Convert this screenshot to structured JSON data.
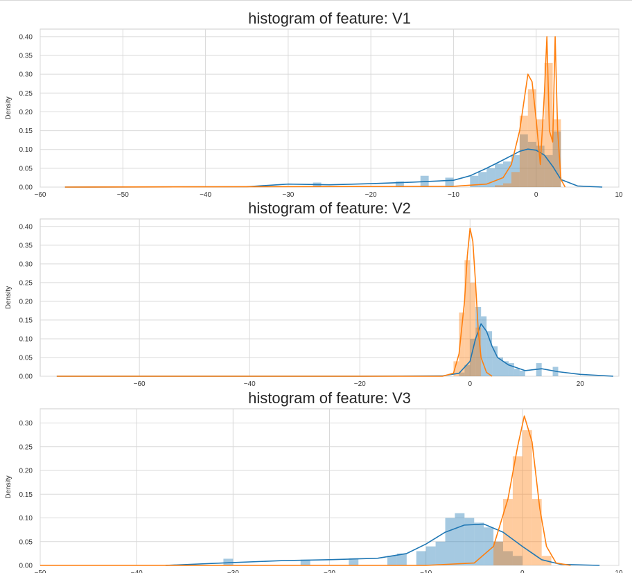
{
  "chart_data": [
    {
      "type": "histogram",
      "title": "histogram of feature: V1",
      "ylabel": "Density",
      "xlim": [
        -60,
        10
      ],
      "ylim": [
        0,
        0.42
      ],
      "xticks": [
        -60,
        -50,
        -40,
        -30,
        -20,
        -10,
        0,
        10
      ],
      "xtick_labels": [
        "−60",
        "−50",
        "−40",
        "−30",
        "−20",
        "−10",
        "0",
        "10"
      ],
      "yticks": [
        0,
        0.05,
        0.1,
        0.15,
        0.2,
        0.25,
        0.3,
        0.35,
        0.4
      ],
      "ytick_labels": [
        "0.00",
        "0.05",
        "0.10",
        "0.15",
        "0.20",
        "0.25",
        "0.30",
        "0.35",
        "0.40"
      ],
      "grid": true,
      "series": [
        {
          "color": "#1f77b4",
          "bars": [
            {
              "x": -26.5,
              "y": 0.012
            },
            {
              "x": -16.5,
              "y": 0.015
            },
            {
              "x": -13.5,
              "y": 0.03
            },
            {
              "x": -10.5,
              "y": 0.025
            },
            {
              "x": -7.5,
              "y": 0.03
            },
            {
              "x": -6.5,
              "y": 0.04
            },
            {
              "x": -5.5,
              "y": 0.05
            },
            {
              "x": -4.5,
              "y": 0.062
            },
            {
              "x": -3.5,
              "y": 0.068
            },
            {
              "x": -2.5,
              "y": 0.085
            },
            {
              "x": -1.5,
              "y": 0.14
            },
            {
              "x": -0.5,
              "y": 0.12
            },
            {
              "x": 0.5,
              "y": 0.11
            },
            {
              "x": 1.5,
              "y": 0.085
            },
            {
              "x": 2.5,
              "y": 0.148
            }
          ],
          "kde": [
            [
              -57,
              0
            ],
            [
              -35,
              0.001
            ],
            [
              -30,
              0.008
            ],
            [
              -25,
              0.006
            ],
            [
              -20,
              0.009
            ],
            [
              -15,
              0.013
            ],
            [
              -10,
              0.018
            ],
            [
              -8,
              0.03
            ],
            [
              -6,
              0.05
            ],
            [
              -4,
              0.072
            ],
            [
              -2,
              0.095
            ],
            [
              -1,
              0.101
            ],
            [
              0,
              0.098
            ],
            [
              1,
              0.085
            ],
            [
              2,
              0.055
            ],
            [
              3,
              0.02
            ],
            [
              5,
              0.003
            ],
            [
              8,
              0
            ]
          ]
        },
        {
          "color": "#ff7f0e",
          "bars": [
            {
              "x": -4.5,
              "y": 0.005
            },
            {
              "x": -3.5,
              "y": 0.01
            },
            {
              "x": -2.5,
              "y": 0.04
            },
            {
              "x": -1.5,
              "y": 0.19
            },
            {
              "x": -0.5,
              "y": 0.26
            },
            {
              "x": 0.5,
              "y": 0.18
            },
            {
              "x": 1.5,
              "y": 0.33
            },
            {
              "x": 2.5,
              "y": 0.18
            }
          ],
          "kde": [
            [
              -57,
              0
            ],
            [
              -10,
              0.002
            ],
            [
              -6,
              0.008
            ],
            [
              -4,
              0.025
            ],
            [
              -3,
              0.06
            ],
            [
              -2,
              0.15
            ],
            [
              -1,
              0.3
            ],
            [
              -0.5,
              0.28
            ],
            [
              0,
              0.18
            ],
            [
              0.5,
              0.06
            ],
            [
              1,
              0.25
            ],
            [
              1.3,
              0.4
            ],
            [
              1.6,
              0.15
            ],
            [
              2,
              0.12
            ],
            [
              2.3,
              0.4
            ],
            [
              2.6,
              0.15
            ],
            [
              3,
              0.02
            ],
            [
              3.5,
              0
            ]
          ]
        }
      ]
    },
    {
      "type": "histogram",
      "title": "histogram of feature: V2",
      "ylabel": "Density",
      "xlim": [
        -78,
        27
      ],
      "ylim": [
        0,
        0.42
      ],
      "xticks": [
        -60,
        -40,
        -20,
        0,
        20
      ],
      "xtick_labels": [
        "−60",
        "−40",
        "−20",
        "0",
        "20"
      ],
      "yticks": [
        0,
        0.05,
        0.1,
        0.15,
        0.2,
        0.25,
        0.3,
        0.35,
        0.4
      ],
      "ytick_labels": [
        "0.00",
        "0.05",
        "0.10",
        "0.15",
        "0.20",
        "0.25",
        "0.30",
        "0.35",
        "0.40"
      ],
      "grid": true,
      "series": [
        {
          "color": "#1f77b4",
          "bars": [
            {
              "x": -1.5,
              "y": 0.01
            },
            {
              "x": -0.5,
              "y": 0.03
            },
            {
              "x": 0.5,
              "y": 0.1
            },
            {
              "x": 1.5,
              "y": 0.185
            },
            {
              "x": 2.5,
              "y": 0.16
            },
            {
              "x": 3.5,
              "y": 0.12
            },
            {
              "x": 4.5,
              "y": 0.08
            },
            {
              "x": 5.5,
              "y": 0.05
            },
            {
              "x": 6.5,
              "y": 0.04
            },
            {
              "x": 7.5,
              "y": 0.035
            },
            {
              "x": 8.5,
              "y": 0.02
            },
            {
              "x": 9.5,
              "y": 0.015
            },
            {
              "x": 12.5,
              "y": 0.035
            },
            {
              "x": 15.5,
              "y": 0.025
            }
          ],
          "kde": [
            [
              -75,
              0
            ],
            [
              -20,
              0
            ],
            [
              -5,
              0.001
            ],
            [
              -2,
              0.008
            ],
            [
              0,
              0.04
            ],
            [
              1,
              0.1
            ],
            [
              2,
              0.14
            ],
            [
              3,
              0.12
            ],
            [
              4,
              0.08
            ],
            [
              5,
              0.05
            ],
            [
              7,
              0.03
            ],
            [
              10,
              0.015
            ],
            [
              13,
              0.02
            ],
            [
              16,
              0.012
            ],
            [
              20,
              0.005
            ],
            [
              26,
              0
            ]
          ]
        },
        {
          "color": "#ff7f0e",
          "bars": [
            {
              "x": -2.5,
              "y": 0.04
            },
            {
              "x": -1.5,
              "y": 0.17
            },
            {
              "x": -0.5,
              "y": 0.31
            },
            {
              "x": 0.5,
              "y": 0.25
            },
            {
              "x": 1.5,
              "y": 0.13
            }
          ],
          "kde": [
            [
              -75,
              0
            ],
            [
              -5,
              0
            ],
            [
              -3,
              0.008
            ],
            [
              -2,
              0.06
            ],
            [
              -1,
              0.2
            ],
            [
              -0.5,
              0.32
            ],
            [
              0,
              0.395
            ],
            [
              0.5,
              0.36
            ],
            [
              1,
              0.25
            ],
            [
              1.5,
              0.12
            ],
            [
              2,
              0.05
            ],
            [
              3,
              0.01
            ],
            [
              4,
              0
            ]
          ]
        }
      ]
    },
    {
      "type": "histogram",
      "title": "histogram of feature: V3",
      "ylabel": "Density",
      "xlim": [
        -50,
        10
      ],
      "ylim": [
        0,
        0.33
      ],
      "xticks": [
        -50,
        -40,
        -30,
        -20,
        -10,
        0,
        10
      ],
      "xtick_labels": [
        "−50",
        "−40",
        "−30",
        "−20",
        "−10",
        "0",
        "10"
      ],
      "yticks": [
        0,
        0.05,
        0.1,
        0.15,
        0.2,
        0.25,
        0.3
      ],
      "ytick_labels": [
        "0.00",
        "0.05",
        "0.10",
        "0.15",
        "0.20",
        "0.25",
        "0.30"
      ],
      "grid": true,
      "series": [
        {
          "color": "#1f77b4",
          "bars": [
            {
              "x": -30.5,
              "y": 0.014
            },
            {
              "x": -22.5,
              "y": 0.012
            },
            {
              "x": -17.5,
              "y": 0.015
            },
            {
              "x": -13.5,
              "y": 0.02
            },
            {
              "x": -12.5,
              "y": 0.025
            },
            {
              "x": -10.5,
              "y": 0.03
            },
            {
              "x": -9.5,
              "y": 0.04
            },
            {
              "x": -8.5,
              "y": 0.05
            },
            {
              "x": -7.5,
              "y": 0.1
            },
            {
              "x": -6.5,
              "y": 0.11
            },
            {
              "x": -5.5,
              "y": 0.1
            },
            {
              "x": -4.5,
              "y": 0.09
            },
            {
              "x": -3.5,
              "y": 0.08
            },
            {
              "x": -2.5,
              "y": 0.05
            },
            {
              "x": -1.5,
              "y": 0.03
            },
            {
              "x": -0.5,
              "y": 0.02
            }
          ],
          "kde": [
            [
              -37,
              0
            ],
            [
              -30,
              0.006
            ],
            [
              -25,
              0.01
            ],
            [
              -20,
              0.012
            ],
            [
              -15,
              0.015
            ],
            [
              -12,
              0.025
            ],
            [
              -10,
              0.045
            ],
            [
              -8,
              0.07
            ],
            [
              -6,
              0.085
            ],
            [
              -4,
              0.087
            ],
            [
              -2,
              0.07
            ],
            [
              0,
              0.04
            ],
            [
              2,
              0.012
            ],
            [
              4,
              0.002
            ],
            [
              8,
              0
            ]
          ]
        },
        {
          "color": "#ff7f0e",
          "bars": [
            {
              "x": -2.5,
              "y": 0.05
            },
            {
              "x": -1.5,
              "y": 0.14
            },
            {
              "x": -0.5,
              "y": 0.23
            },
            {
              "x": 0.5,
              "y": 0.285
            },
            {
              "x": 1.5,
              "y": 0.14
            },
            {
              "x": 2.5,
              "y": 0.02
            }
          ],
          "kde": [
            [
              -50,
              0
            ],
            [
              -10,
              0
            ],
            [
              -5,
              0.005
            ],
            [
              -3,
              0.04
            ],
            [
              -1.5,
              0.14
            ],
            [
              -0.5,
              0.25
            ],
            [
              0.2,
              0.315
            ],
            [
              1,
              0.26
            ],
            [
              1.8,
              0.12
            ],
            [
              2.5,
              0.04
            ],
            [
              3.5,
              0.005
            ],
            [
              5,
              0
            ]
          ]
        }
      ]
    }
  ]
}
